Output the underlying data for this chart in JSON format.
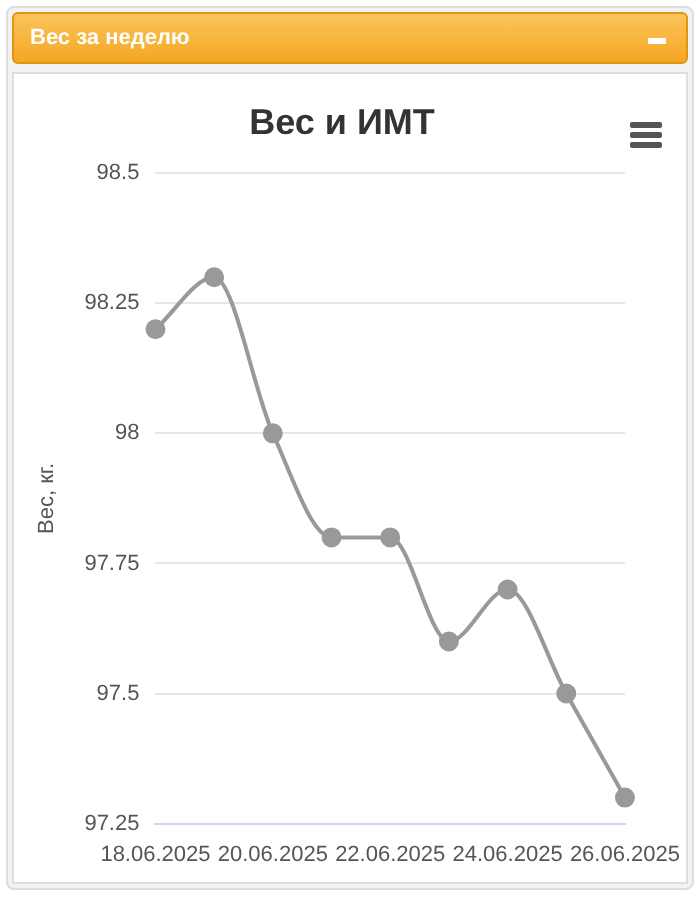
{
  "chart_data": {
    "type": "line",
    "title": "Вес и ИМТ",
    "subtitle": "Вес за неделю",
    "ylabel": "Вес, кг.",
    "categories": [
      "18.06.2025",
      null,
      "20.06.2025",
      null,
      "22.06.2025",
      null,
      "24.06.2025",
      null,
      "26.06.2025"
    ],
    "series": [
      {
        "color": "#999999",
        "values": [
          98.2,
          98.3,
          98.0,
          97.8,
          97.8,
          97.6,
          97.7,
          97.5,
          97.3
        ]
      }
    ],
    "ylim": [
      97.25,
      98.5
    ],
    "yticks": [
      97.25,
      97.5,
      97.75,
      98,
      98.25,
      98.5
    ],
    "grid": "y",
    "legend": false,
    "marker": "circle",
    "line_style": "solid"
  }
}
